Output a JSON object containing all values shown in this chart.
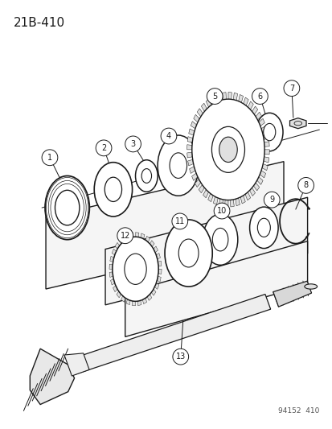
{
  "title": "21B-410",
  "watermark": "94152  410",
  "bg_color": "#ffffff",
  "line_color": "#1a1a1a",
  "title_fontsize": 11,
  "label_fontsize": 7
}
